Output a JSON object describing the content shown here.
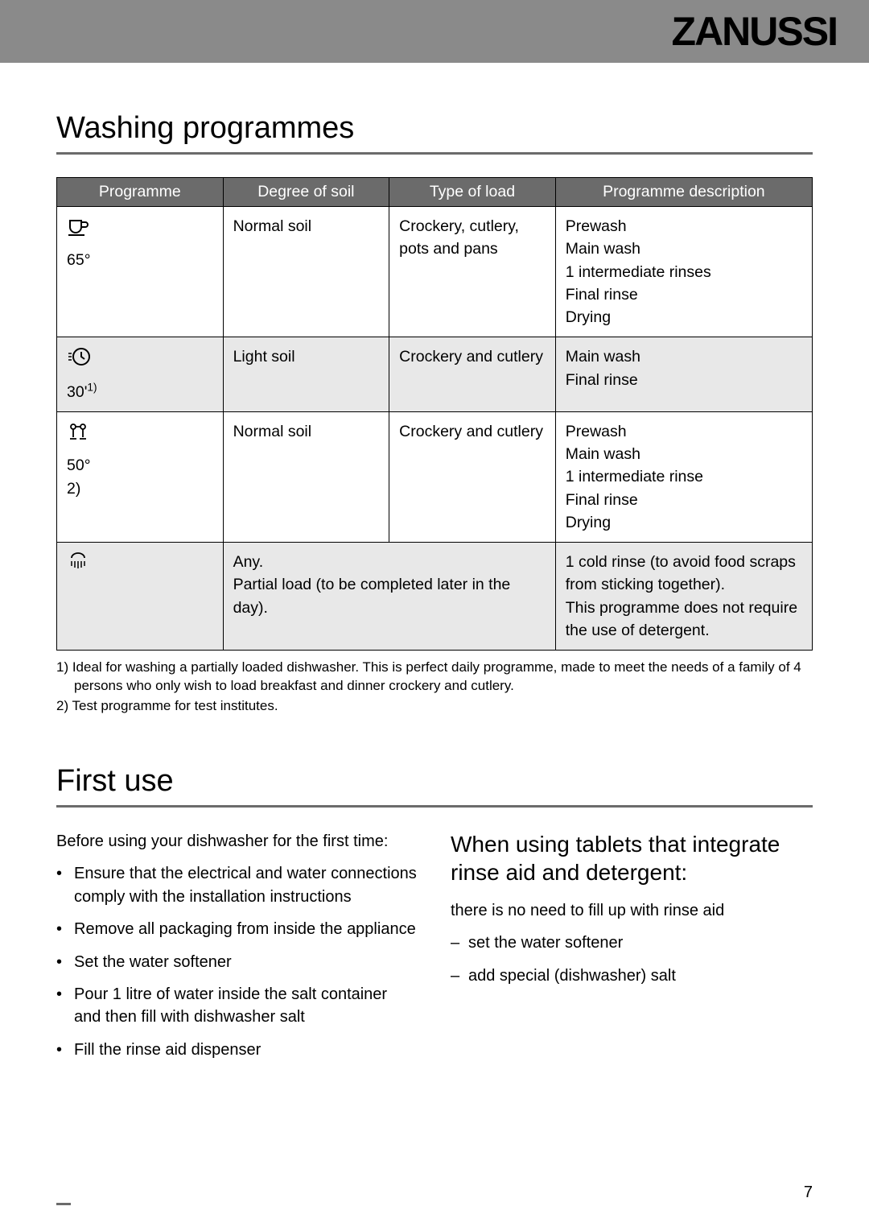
{
  "brand": "ZANUSSI",
  "section1": {
    "title": "Washing programmes",
    "table": {
      "headers": [
        "Programme",
        "Degree of soil",
        "Type of load",
        "Programme description"
      ],
      "rows": [
        {
          "icon": "cup",
          "prog_label": "65°",
          "soil": "Normal soil",
          "load": "Crockery, cutlery, pots and pans",
          "desc": "Prewash\nMain wash\n1 intermediate rinses\nFinal rinse\nDrying",
          "alt": false,
          "merged": false
        },
        {
          "icon": "clock",
          "prog_label": "30'",
          "prog_sup": "1)",
          "soil": "Light soil",
          "load": "Crockery and cutlery",
          "desc": "Main wash\nFinal rinse",
          "alt": true,
          "merged": false
        },
        {
          "icon": "glasses",
          "prog_label": "50°",
          "prog_sub": "2)",
          "soil": "Normal soil",
          "load": "Crockery and cutlery",
          "desc": "Prewash\nMain wash\n1 intermediate rinse\nFinal rinse\nDrying",
          "alt": false,
          "merged": false
        },
        {
          "icon": "shower",
          "prog_label": "",
          "merged_text": "Any.\nPartial load (to be completed later in the day).",
          "desc": "1 cold rinse (to avoid food scraps from sticking together).\nThis programme does not require the use of detergent.",
          "alt": true,
          "merged": true
        }
      ]
    },
    "footnotes": [
      "1) Ideal for washing a partially loaded dishwasher. This is perfect daily programme, made to meet the needs of a family of 4 persons who only wish to load breakfast and dinner crockery and cutlery.",
      "2) Test programme for test institutes."
    ]
  },
  "section2": {
    "title": "First use",
    "left": {
      "intro": "Before using your dishwasher for the first time:",
      "items": [
        "Ensure that the electrical and water connections comply with the installation instructions",
        "Remove all packaging from inside the appliance",
        "Set the water softener",
        "Pour 1 litre of water inside the salt container and then fill with dishwasher salt",
        "Fill the rinse aid dispenser"
      ]
    },
    "right": {
      "heading": "When using tablets that integrate rinse aid and detergent:",
      "intro": "there is no need to fill up with rinse aid",
      "items": [
        "set the water softener",
        "add special (dishwasher) salt"
      ]
    }
  },
  "page_number": "7"
}
